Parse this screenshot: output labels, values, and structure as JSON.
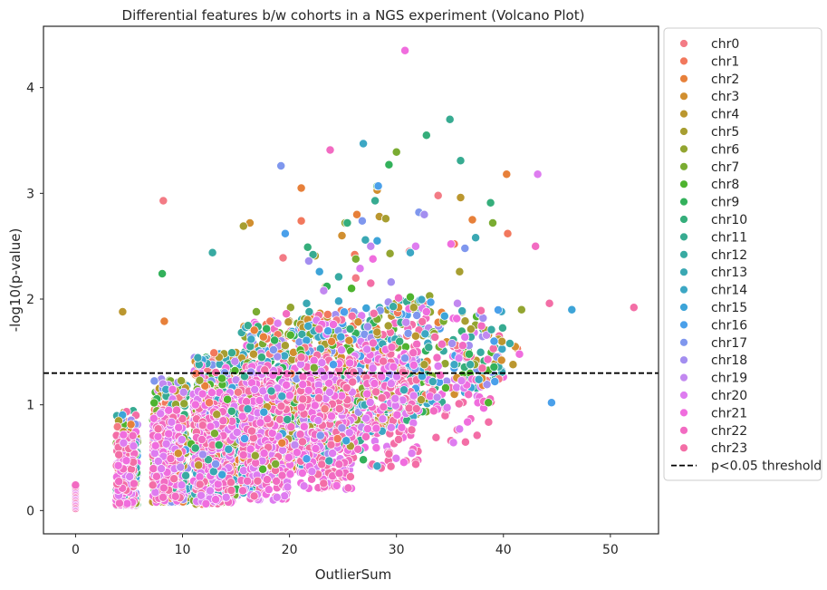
{
  "chart_data": {
    "type": "scatter",
    "title": "Differential features b/w cohorts in a NGS experiment (Volcano Plot)",
    "xlabel": "OutlierSum",
    "ylabel": "-log10(p-value)",
    "xlim": [
      -3,
      54.5
    ],
    "ylim": [
      -0.22,
      4.58
    ],
    "xticks": [
      0,
      10,
      20,
      30,
      40,
      50
    ],
    "yticks": [
      0,
      1,
      2,
      3,
      4
    ],
    "grid": false,
    "legend_position": "outside-right",
    "threshold": {
      "y": 1.3,
      "label": "p<0.05 threshold",
      "style": "dashed",
      "color": "#000000"
    },
    "series": [
      {
        "name": "chr0",
        "color": "#f37b85",
        "points": [
          [
            8.2,
            2.93
          ],
          [
            33.9,
            2.98
          ],
          [
            31.2,
            2.45
          ],
          [
            19.4,
            2.39
          ],
          [
            35.6,
            1.56
          ],
          [
            26.2,
            2.2
          ],
          [
            15.2,
            1.12
          ],
          [
            23.3,
            0.96
          ]
        ]
      },
      {
        "name": "chr1",
        "color": "#f2785d",
        "points": [
          [
            21.1,
            2.74
          ],
          [
            40.4,
            2.62
          ],
          [
            35.4,
            2.52
          ],
          [
            26.1,
            2.42
          ],
          [
            41.3,
            1.53
          ],
          [
            18.2,
            1.79
          ],
          [
            12.5,
            1.02
          ],
          [
            24.5,
            0.68
          ]
        ]
      },
      {
        "name": "chr2",
        "color": "#e7803a",
        "points": [
          [
            40.3,
            3.18
          ],
          [
            8.3,
            1.79
          ],
          [
            26.3,
            2.8
          ],
          [
            37.1,
            2.75
          ],
          [
            21.1,
            3.05
          ],
          [
            33.9,
            1.78
          ],
          [
            12.1,
            1.18
          ],
          [
            19.3,
            0.64
          ]
        ]
      },
      {
        "name": "chr3",
        "color": "#d18f30",
        "points": [
          [
            28.2,
            3.03
          ],
          [
            41.1,
            1.55
          ],
          [
            30.2,
            1.92
          ],
          [
            24.9,
            2.6
          ],
          [
            36.6,
            1.48
          ],
          [
            16.3,
            2.72
          ],
          [
            14.0,
            0.85
          ],
          [
            9.6,
            0.54
          ]
        ]
      },
      {
        "name": "chr4",
        "color": "#bb972f",
        "points": [
          [
            4.4,
            1.88
          ],
          [
            36.0,
            2.96
          ],
          [
            28.4,
            2.78
          ],
          [
            40.9,
            1.38
          ],
          [
            23.4,
            2.12
          ],
          [
            31.8,
            1.65
          ],
          [
            17.9,
            0.98
          ],
          [
            11.5,
            0.43
          ]
        ]
      },
      {
        "name": "chr5",
        "color": "#a79e31",
        "points": [
          [
            15.7,
            2.69
          ],
          [
            29.0,
            2.76
          ],
          [
            35.9,
            2.26
          ],
          [
            22.4,
            2.41
          ],
          [
            32.6,
            1.38
          ],
          [
            19.6,
            1.56
          ],
          [
            13.2,
            0.91
          ],
          [
            25.7,
            0.61
          ]
        ]
      },
      {
        "name": "chr6",
        "color": "#93a531",
        "points": [
          [
            41.7,
            1.9
          ],
          [
            29.4,
            2.43
          ],
          [
            25.2,
            2.72
          ],
          [
            37.3,
            1.38
          ],
          [
            20.1,
            1.92
          ],
          [
            33.1,
            2.03
          ],
          [
            11.6,
            1.23
          ],
          [
            16.8,
            0.52
          ]
        ]
      },
      {
        "name": "chr7",
        "color": "#7aac32",
        "points": [
          [
            30.0,
            3.39
          ],
          [
            39.0,
            2.72
          ],
          [
            26.2,
            2.38
          ],
          [
            16.9,
            1.88
          ],
          [
            34.4,
            1.79
          ],
          [
            22.3,
            1.35
          ],
          [
            13.0,
            0.73
          ],
          [
            18.7,
            0.44
          ]
        ]
      },
      {
        "name": "chr8",
        "color": "#4eb32f",
        "points": [
          [
            38.6,
            1.02
          ],
          [
            25.8,
            2.1
          ],
          [
            31.3,
            2.02
          ],
          [
            20.1,
            1.66
          ],
          [
            34.6,
            1.16
          ],
          [
            14.2,
            1.05
          ],
          [
            17.5,
            0.39
          ],
          [
            10.8,
            0.63
          ]
        ]
      },
      {
        "name": "chr9",
        "color": "#33b15b",
        "points": [
          [
            29.3,
            3.27
          ],
          [
            28.2,
            3.07
          ],
          [
            8.1,
            2.24
          ],
          [
            23.5,
            2.12
          ],
          [
            36.8,
            1.48
          ],
          [
            18.6,
            1.61
          ],
          [
            13.4,
            0.62
          ],
          [
            26.9,
            0.48
          ]
        ]
      },
      {
        "name": "chr10",
        "color": "#35ae7b",
        "points": [
          [
            32.8,
            3.55
          ],
          [
            25.4,
            2.72
          ],
          [
            38.8,
            2.91
          ],
          [
            21.7,
            2.49
          ],
          [
            30.3,
            1.6
          ],
          [
            17.4,
            1.45
          ],
          [
            14.6,
            0.94
          ],
          [
            11.2,
            0.59
          ]
        ]
      },
      {
        "name": "chr11",
        "color": "#37ab91",
        "points": [
          [
            35.0,
            3.7
          ],
          [
            36.0,
            3.31
          ],
          [
            28.0,
            2.93
          ],
          [
            22.2,
            2.42
          ],
          [
            33.5,
            1.64
          ],
          [
            15.8,
            1.27
          ],
          [
            19.8,
            0.86
          ],
          [
            12.4,
            0.48
          ]
        ]
      },
      {
        "name": "chr12",
        "color": "#38aaa2",
        "points": [
          [
            40.6,
            1.58
          ],
          [
            12.8,
            2.44
          ],
          [
            29.7,
            1.93
          ],
          [
            24.6,
            2.21
          ],
          [
            36.9,
            1.38
          ],
          [
            18.3,
            1.13
          ],
          [
            26.6,
            0.57
          ],
          [
            10.3,
            0.33
          ]
        ]
      },
      {
        "name": "chr13",
        "color": "#3aa8b3",
        "points": [
          [
            37.4,
            2.58
          ],
          [
            33.4,
            1.22
          ],
          [
            27.1,
            2.56
          ],
          [
            21.6,
            1.96
          ],
          [
            30.7,
            1.14
          ],
          [
            16.1,
            0.96
          ],
          [
            23.7,
            0.47
          ],
          [
            12.9,
            0.37
          ]
        ]
      },
      {
        "name": "chr14",
        "color": "#3ca7c4",
        "points": [
          [
            26.9,
            3.47
          ],
          [
            35.4,
            1.38
          ],
          [
            31.3,
            2.44
          ],
          [
            24.6,
            1.98
          ],
          [
            37.7,
            1.24
          ],
          [
            19.3,
            1.08
          ],
          [
            14.3,
            0.58
          ],
          [
            28.2,
            0.42
          ]
        ]
      },
      {
        "name": "chr15",
        "color": "#3da4d8",
        "points": [
          [
            46.4,
            1.9
          ],
          [
            34.5,
            1.84
          ],
          [
            28.2,
            2.55
          ],
          [
            22.8,
            2.26
          ],
          [
            32.4,
            1.27
          ],
          [
            17.6,
            0.93
          ],
          [
            25.3,
            0.66
          ],
          [
            13.7,
            0.34
          ]
        ]
      },
      {
        "name": "chr16",
        "color": "#4aa0ea",
        "points": [
          [
            44.5,
            1.02
          ],
          [
            39.2,
            1.22
          ],
          [
            28.3,
            3.07
          ],
          [
            19.6,
            2.62
          ],
          [
            33.2,
            1.97
          ],
          [
            24.1,
            1.38
          ],
          [
            15.8,
            0.68
          ],
          [
            21.6,
            0.49
          ]
        ]
      },
      {
        "name": "chr17",
        "color": "#7f97ee",
        "points": [
          [
            19.2,
            3.26
          ],
          [
            32.1,
            2.82
          ],
          [
            36.4,
            2.48
          ],
          [
            26.8,
            2.74
          ],
          [
            30.8,
            1.44
          ],
          [
            18.5,
            1.52
          ],
          [
            22.9,
            0.71
          ],
          [
            13.1,
            0.44
          ]
        ]
      },
      {
        "name": "chr18",
        "color": "#a38ef0",
        "points": [
          [
            32.6,
            2.8
          ],
          [
            38.1,
            1.82
          ],
          [
            29.5,
            2.16
          ],
          [
            21.8,
            2.36
          ],
          [
            35.2,
            1.58
          ],
          [
            16.4,
            1.31
          ],
          [
            24.9,
            0.78
          ],
          [
            11.9,
            0.53
          ]
        ]
      },
      {
        "name": "chr19",
        "color": "#c288f0",
        "points": [
          [
            27.6,
            2.5
          ],
          [
            35.7,
            1.96
          ],
          [
            30.9,
            1.78
          ],
          [
            23.2,
            2.08
          ],
          [
            33.8,
            1.07
          ],
          [
            14.9,
            1.41
          ],
          [
            20.5,
            0.62
          ],
          [
            9.8,
            0.41
          ]
        ]
      },
      {
        "name": "chr20",
        "color": "#de7cf0",
        "points": [
          [
            43.2,
            3.18
          ],
          [
            31.8,
            2.5
          ],
          [
            36.4,
            1.64
          ],
          [
            26.6,
            2.29
          ],
          [
            29.5,
            1.2
          ],
          [
            18.9,
            1.77
          ],
          [
            15.1,
            0.74
          ],
          [
            22.1,
            0.37
          ]
        ]
      },
      {
        "name": "chr21",
        "color": "#f06dde",
        "points": [
          [
            30.8,
            4.35
          ],
          [
            35.1,
            2.52
          ],
          [
            41.5,
            1.48
          ],
          [
            27.8,
            2.38
          ],
          [
            32.8,
            1.88
          ],
          [
            24.1,
            1.76
          ],
          [
            17.2,
            1.04
          ],
          [
            20.7,
            0.55
          ]
        ]
      },
      {
        "name": "chr22",
        "color": "#f26bc2",
        "points": [
          [
            43.0,
            2.5
          ],
          [
            36.2,
            1.56
          ],
          [
            30.2,
            2.01
          ],
          [
            23.8,
            3.41
          ],
          [
            34.1,
            1.28
          ],
          [
            19.7,
            1.86
          ],
          [
            13.8,
            0.85
          ],
          [
            26.4,
            0.58
          ]
        ]
      },
      {
        "name": "chr23",
        "color": "#f36ea6",
        "points": [
          [
            52.2,
            1.92
          ],
          [
            44.3,
            1.96
          ],
          [
            37.9,
            1.89
          ],
          [
            30.6,
            1.31
          ],
          [
            33.6,
            1.64
          ],
          [
            27.6,
            2.15
          ],
          [
            21.1,
            1.45
          ],
          [
            25.7,
            0.32
          ]
        ]
      }
    ],
    "baseline_cluster": {
      "x": 0,
      "y_range": [
        0.02,
        0.24
      ],
      "series": [
        "chr21",
        "chr22",
        "chr23",
        "chr20"
      ]
    }
  }
}
